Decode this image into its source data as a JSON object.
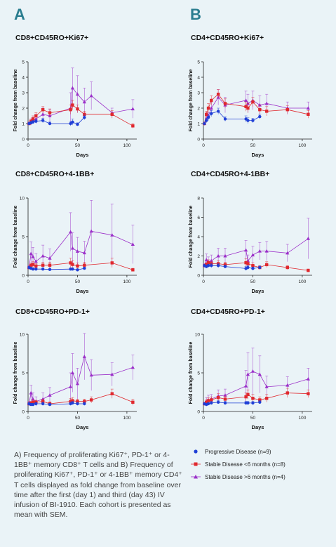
{
  "panels": [
    {
      "letter": "A"
    },
    {
      "letter": "B"
    }
  ],
  "colors": {
    "progressive": "#1f3fd6",
    "stable_short": "#e0282e",
    "stable_long": "#9b2fc9"
  },
  "legend": [
    {
      "label": "Progressive Disease (n=9)",
      "marker": "circle",
      "color": "#1f3fd6"
    },
    {
      "label": "Stable Disease <6 months (n=8)",
      "marker": "square",
      "color": "#e0282e"
    },
    {
      "label": "Stable Disease >6 months (n=4)",
      "marker": "triangle",
      "color": "#9b2fc9"
    }
  ],
  "caption": "A) Frequency of proliferating Ki67⁺, PD-1⁺ or 4-1BB⁺ memory CD8⁺ T cells and B) Frequency of proliferating Ki67⁺, PD-1⁺ or 4-1BB⁺ memory CD4⁺ T cells displayed as fold change from baseline over time after the first (day 1) and third (day 43) IV infusion of BI-1910. Each cohort is presented as mean with SEM.",
  "chart_data": [
    {
      "type": "line",
      "title": "CD8+CD45RO+Ki67+",
      "xlabel": "Days",
      "ylabel": "Fold change from baseline",
      "xlim": [
        0,
        110
      ],
      "ylim": [
        0,
        5
      ],
      "xticks": [
        0,
        50,
        100
      ],
      "yticks": [
        0,
        1,
        2,
        3,
        4,
        5
      ],
      "series": [
        {
          "name": "Progressive Disease (n=9)",
          "x": [
            1,
            3,
            5,
            8,
            15,
            22,
            43,
            45,
            50,
            57
          ],
          "y": [
            1.0,
            1.05,
            1.1,
            1.15,
            1.2,
            1.0,
            1.0,
            1.1,
            0.95,
            1.4
          ],
          "err": [
            0.05,
            0.1,
            0.1,
            0.1,
            0.15,
            0.1,
            0.15,
            0.2,
            0.1,
            0.15
          ]
        },
        {
          "name": "Stable Disease <6 months (n=8)",
          "x": [
            1,
            3,
            5,
            8,
            15,
            22,
            43,
            45,
            50,
            57,
            85,
            106
          ],
          "y": [
            1.0,
            1.15,
            1.3,
            1.5,
            1.9,
            1.7,
            1.9,
            2.2,
            1.95,
            1.6,
            1.6,
            0.85
          ],
          "err": [
            0.05,
            0.15,
            0.2,
            0.2,
            0.2,
            0.25,
            0.3,
            0.3,
            0.25,
            0.2,
            0.25,
            0.15
          ]
        },
        {
          "name": "Stable Disease >6 months (n=4)",
          "x": [
            1,
            3,
            5,
            8,
            15,
            22,
            43,
            45,
            50,
            57,
            64,
            85,
            106
          ],
          "y": [
            1.0,
            1.1,
            1.2,
            1.3,
            1.6,
            1.5,
            2.0,
            3.3,
            2.9,
            2.4,
            2.8,
            1.7,
            1.95
          ],
          "err": [
            0.1,
            0.2,
            0.2,
            0.3,
            0.4,
            0.4,
            1.0,
            1.3,
            1.2,
            0.9,
            0.9,
            0.3,
            0.6
          ]
        }
      ]
    },
    {
      "type": "line",
      "title": "CD4+CD45RO+Ki67+",
      "xlabel": "Days",
      "ylabel": "Fold change from baseline",
      "xlim": [
        0,
        110
      ],
      "ylim": [
        0,
        5
      ],
      "xticks": [
        0,
        50,
        100
      ],
      "yticks": [
        0,
        1,
        2,
        3,
        4,
        5
      ],
      "series": [
        {
          "name": "Progressive Disease (n=9)",
          "x": [
            1,
            3,
            5,
            8,
            15,
            22,
            43,
            45,
            50,
            57
          ],
          "y": [
            1.0,
            1.2,
            1.4,
            1.65,
            1.8,
            1.3,
            1.3,
            1.2,
            1.2,
            1.45
          ],
          "err": [
            0.1,
            0.15,
            0.2,
            0.2,
            0.2,
            0.15,
            0.2,
            0.2,
            0.15,
            0.15
          ]
        },
        {
          "name": "Stable Disease <6 months (n=8)",
          "x": [
            1,
            3,
            5,
            8,
            15,
            22,
            43,
            45,
            50,
            57,
            64,
            85,
            106
          ],
          "y": [
            1.0,
            1.6,
            2.0,
            2.5,
            2.9,
            2.3,
            2.1,
            2.0,
            2.4,
            1.9,
            1.8,
            1.9,
            1.6
          ],
          "err": [
            0.1,
            0.2,
            0.3,
            0.3,
            0.3,
            0.3,
            0.3,
            0.3,
            0.3,
            0.3,
            0.3,
            0.25,
            0.25
          ]
        },
        {
          "name": "Stable Disease >6 months (n=4)",
          "x": [
            1,
            3,
            5,
            8,
            15,
            22,
            43,
            45,
            50,
            57,
            64,
            85,
            106
          ],
          "y": [
            1.0,
            1.3,
            1.5,
            2.0,
            2.7,
            2.2,
            2.5,
            2.3,
            2.5,
            2.2,
            2.3,
            2.0,
            2.0
          ],
          "err": [
            0.1,
            0.2,
            0.2,
            0.4,
            0.5,
            0.5,
            0.6,
            0.6,
            0.6,
            0.6,
            0.6,
            0.4,
            0.4
          ]
        }
      ]
    },
    {
      "type": "line",
      "title": "CD8+CD45RO+4-1BB+",
      "xlabel": "Days",
      "ylabel": "Fold change from baseline",
      "xlim": [
        0,
        110
      ],
      "ylim": [
        0,
        10
      ],
      "xticks": [
        0,
        50,
        100
      ],
      "yticks": [
        0,
        5,
        10
      ],
      "series": [
        {
          "name": "Progressive Disease (n=9)",
          "x": [
            1,
            3,
            5,
            8,
            15,
            22,
            43,
            45,
            50,
            57
          ],
          "y": [
            1.0,
            0.9,
            0.8,
            0.8,
            0.8,
            0.75,
            0.8,
            0.8,
            0.7,
            0.9
          ],
          "err": [
            0.1,
            0.1,
            0.1,
            0.1,
            0.15,
            0.1,
            0.15,
            0.15,
            0.1,
            0.15
          ]
        },
        {
          "name": "Stable Disease <6 months (n=8)",
          "x": [
            1,
            3,
            5,
            8,
            15,
            22,
            43,
            45,
            50,
            57,
            85,
            106
          ],
          "y": [
            1.0,
            1.3,
            1.4,
            1.2,
            1.3,
            1.3,
            1.6,
            1.4,
            1.2,
            1.3,
            1.6,
            0.7
          ],
          "err": [
            0.1,
            0.3,
            0.4,
            0.3,
            0.4,
            0.4,
            0.6,
            0.5,
            0.4,
            0.4,
            0.6,
            0.2
          ]
        },
        {
          "name": "Stable Disease >6 months (n=4)",
          "x": [
            1,
            3,
            5,
            8,
            15,
            22,
            43,
            45,
            50,
            57,
            64,
            85,
            106
          ],
          "y": [
            1.0,
            2.8,
            2.4,
            1.8,
            2.5,
            2.2,
            5.6,
            3.5,
            3.1,
            2.9,
            5.7,
            5.2,
            4.0
          ],
          "err": [
            0.3,
            1.5,
            1.2,
            1.0,
            1.4,
            1.2,
            2.5,
            2.0,
            1.8,
            1.5,
            4.0,
            4.0,
            2.5
          ]
        }
      ]
    },
    {
      "type": "line",
      "title": "CD4+CD45RO+4-1BB+",
      "xlabel": "Days",
      "ylabel": "Fold change from baseline",
      "xlim": [
        0,
        110
      ],
      "ylim": [
        0,
        8
      ],
      "xticks": [
        0,
        50,
        100
      ],
      "yticks": [
        0,
        2,
        4,
        6,
        8
      ],
      "series": [
        {
          "name": "Progressive Disease (n=9)",
          "x": [
            1,
            3,
            5,
            8,
            15,
            22,
            43,
            45,
            50,
            57
          ],
          "y": [
            1.0,
            0.9,
            1.0,
            1.0,
            1.0,
            0.9,
            0.7,
            0.8,
            0.7,
            0.8
          ],
          "err": [
            0.1,
            0.15,
            0.15,
            0.2,
            0.2,
            0.15,
            0.2,
            0.2,
            0.15,
            0.15
          ]
        },
        {
          "name": "Stable Disease <6 months (n=8)",
          "x": [
            1,
            3,
            5,
            8,
            15,
            22,
            43,
            45,
            50,
            57,
            64,
            85,
            106
          ],
          "y": [
            1.0,
            1.1,
            1.3,
            1.2,
            1.2,
            1.1,
            1.3,
            1.2,
            1.0,
            0.8,
            1.1,
            0.8,
            0.5
          ],
          "err": [
            0.1,
            0.2,
            0.3,
            0.25,
            0.3,
            0.25,
            0.4,
            0.3,
            0.3,
            0.2,
            0.3,
            0.2,
            0.15
          ]
        },
        {
          "name": "Stable Disease >6 months (n=4)",
          "x": [
            1,
            3,
            5,
            8,
            15,
            22,
            43,
            45,
            50,
            57,
            64,
            85,
            106
          ],
          "y": [
            1.0,
            1.6,
            1.4,
            1.5,
            2.0,
            2.0,
            2.6,
            1.5,
            2.1,
            2.5,
            2.5,
            2.3,
            3.8
          ],
          "err": [
            0.2,
            0.6,
            0.5,
            0.6,
            0.8,
            0.8,
            1.0,
            0.6,
            0.9,
            0.9,
            1.0,
            0.9,
            2.1
          ]
        }
      ]
    },
    {
      "type": "line",
      "title": "CD8+CD45RO+PD-1+",
      "xlabel": "Days",
      "ylabel": "Fold change from baseline",
      "xlim": [
        0,
        110
      ],
      "ylim": [
        0,
        10
      ],
      "xticks": [
        0,
        50,
        100
      ],
      "yticks": [
        0,
        5,
        10
      ],
      "series": [
        {
          "name": "Progressive Disease (n=9)",
          "x": [
            1,
            3,
            5,
            8,
            15,
            22,
            43,
            45,
            50,
            57
          ],
          "y": [
            1.0,
            0.9,
            0.9,
            1.0,
            1.0,
            0.9,
            1.0,
            1.1,
            1.0,
            1.0
          ],
          "err": [
            0.1,
            0.15,
            0.15,
            0.15,
            0.2,
            0.15,
            0.2,
            0.2,
            0.2,
            0.2
          ]
        },
        {
          "name": "Stable Disease <6 months (n=8)",
          "x": [
            1,
            3,
            5,
            8,
            15,
            22,
            43,
            45,
            50,
            57,
            64,
            85,
            106
          ],
          "y": [
            1.0,
            1.1,
            1.2,
            1.2,
            1.3,
            1.0,
            1.3,
            1.4,
            1.3,
            1.3,
            1.5,
            2.3,
            1.2
          ],
          "err": [
            0.1,
            0.2,
            0.3,
            0.25,
            0.3,
            0.25,
            0.4,
            0.4,
            0.3,
            0.3,
            0.4,
            0.6,
            0.4
          ]
        },
        {
          "name": "Stable Disease >6 months (n=4)",
          "x": [
            1,
            3,
            5,
            8,
            15,
            22,
            43,
            45,
            50,
            57,
            64,
            85,
            106
          ],
          "y": [
            1.0,
            2.4,
            1.6,
            1.3,
            1.6,
            2.1,
            3.2,
            5.0,
            3.6,
            7.1,
            4.7,
            4.8,
            5.7
          ],
          "err": [
            0.3,
            1.0,
            0.8,
            0.6,
            0.8,
            1.0,
            1.8,
            2.5,
            2.0,
            3.0,
            2.0,
            1.5,
            1.6
          ]
        }
      ]
    },
    {
      "type": "line",
      "title": "CD4+CD45RO+PD-1+",
      "xlabel": "Days",
      "ylabel": "Fold change from baseline",
      "xlim": [
        0,
        110
      ],
      "ylim": [
        0,
        10
      ],
      "xticks": [
        0,
        50,
        100
      ],
      "yticks": [
        0,
        5,
        10
      ],
      "series": [
        {
          "name": "Progressive Disease (n=9)",
          "x": [
            1,
            3,
            5,
            8,
            15,
            22,
            43,
            45,
            50,
            57
          ],
          "y": [
            1.0,
            0.9,
            1.0,
            1.1,
            1.2,
            1.1,
            1.1,
            1.1,
            1.1,
            1.2
          ],
          "err": [
            0.1,
            0.15,
            0.15,
            0.2,
            0.2,
            0.2,
            0.2,
            0.2,
            0.2,
            0.2
          ]
        },
        {
          "name": "Stable Disease <6 months (n=8)",
          "x": [
            1,
            3,
            5,
            8,
            15,
            22,
            43,
            45,
            50,
            57,
            64,
            85,
            106
          ],
          "y": [
            1.0,
            1.2,
            1.4,
            1.5,
            1.8,
            1.6,
            1.9,
            2.2,
            1.7,
            1.5,
            1.7,
            2.4,
            2.3
          ],
          "err": [
            0.1,
            0.3,
            0.4,
            0.4,
            0.5,
            0.4,
            0.5,
            0.6,
            0.5,
            0.4,
            0.5,
            0.6,
            0.5
          ]
        },
        {
          "name": "Stable Disease >6 months (n=4)",
          "x": [
            1,
            3,
            5,
            8,
            15,
            22,
            43,
            45,
            50,
            57,
            64,
            85,
            106
          ],
          "y": [
            1.0,
            1.3,
            1.5,
            1.6,
            2.0,
            2.1,
            3.3,
            4.8,
            5.2,
            4.8,
            3.2,
            3.4,
            4.2
          ],
          "err": [
            0.2,
            0.5,
            0.6,
            0.6,
            0.8,
            0.8,
            2.0,
            2.8,
            3.0,
            2.4,
            1.4,
            1.1,
            1.4
          ]
        }
      ]
    }
  ]
}
